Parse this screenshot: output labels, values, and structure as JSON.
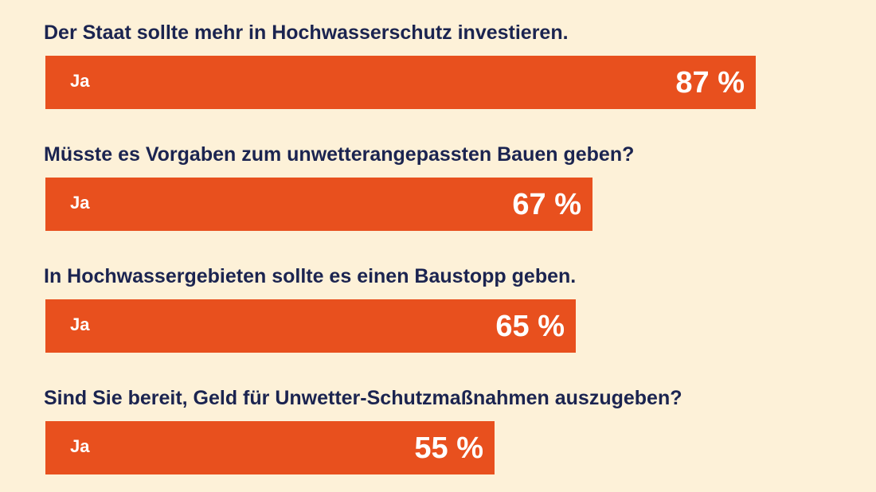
{
  "chart_data": {
    "type": "bar",
    "orientation": "horizontal",
    "xlim": [
      0,
      100
    ],
    "unit": "%",
    "bar_color": "#e8501e",
    "background_color": "#fdf1d8",
    "text_color": "#1b2450",
    "items": [
      {
        "question": "Der Staat sollte mehr in Hochwasserschutz investieren.",
        "answer": "Ja",
        "value": 87,
        "value_label": "87 %"
      },
      {
        "question": "Müsste es Vorgaben zum unwetterangepassten Bauen geben?",
        "answer": "Ja",
        "value": 67,
        "value_label": "67 %"
      },
      {
        "question": "In Hochwassergebieten sollte es einen Baustopp geben.",
        "answer": "Ja",
        "value": 65,
        "value_label": "65 %"
      },
      {
        "question": "Sind Sie bereit, Geld für Unwetter-Schutzmaßnahmen auszugeben?",
        "answer": "Ja",
        "value": 55,
        "value_label": "55 %"
      }
    ]
  }
}
